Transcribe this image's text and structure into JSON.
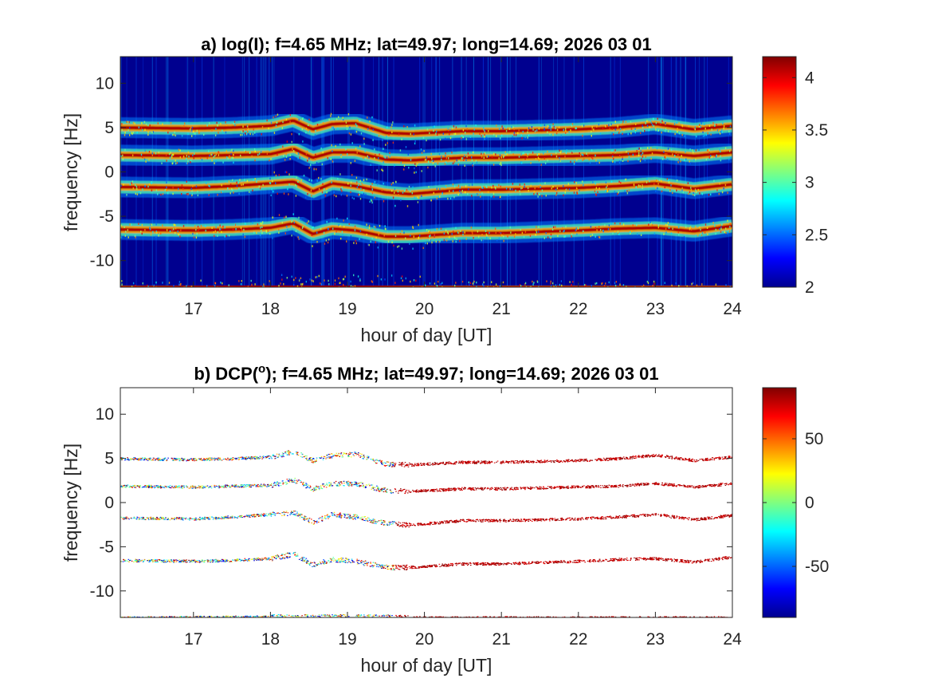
{
  "chart_data": [
    {
      "type": "heatmap",
      "title": "a) log(I); f=4.65 MHz;  lat=49.97; long=14.69; 2026 03 01",
      "xlabel": "hour of day [UT]",
      "ylabel": "frequency [Hz]",
      "xlim": [
        16.05,
        24
      ],
      "ylim": [
        -13,
        13
      ],
      "xticks": [
        17,
        18,
        19,
        20,
        21,
        22,
        23,
        24
      ],
      "yticks": [
        -10,
        -5,
        0,
        5,
        10
      ],
      "colorbar": {
        "min": 2,
        "max": 4.2,
        "ticks": [
          2,
          2.5,
          3,
          3.5,
          4
        ]
      },
      "colormap": "jet",
      "background_value": 2.0,
      "bands": [
        {
          "name": "5 Hz line",
          "points": [
            [
              16.05,
              5.0
            ],
            [
              17.0,
              4.9
            ],
            [
              17.5,
              5.0
            ],
            [
              18.0,
              5.2
            ],
            [
              18.3,
              5.8
            ],
            [
              18.55,
              4.8
            ],
            [
              18.8,
              5.4
            ],
            [
              19.1,
              5.5
            ],
            [
              19.5,
              4.4
            ],
            [
              19.8,
              4.3
            ],
            [
              20.5,
              4.6
            ],
            [
              21.0,
              4.6
            ],
            [
              22.0,
              4.8
            ],
            [
              22.5,
              5.0
            ],
            [
              23.0,
              5.4
            ],
            [
              23.5,
              4.8
            ],
            [
              24.0,
              5.2
            ]
          ]
        },
        {
          "name": "2 Hz line",
          "points": [
            [
              16.05,
              1.9
            ],
            [
              17.0,
              1.8
            ],
            [
              17.5,
              1.9
            ],
            [
              18.0,
              2.0
            ],
            [
              18.3,
              2.6
            ],
            [
              18.55,
              1.6
            ],
            [
              18.8,
              2.2
            ],
            [
              19.1,
              2.2
            ],
            [
              19.5,
              1.4
            ],
            [
              19.8,
              1.3
            ],
            [
              20.5,
              1.6
            ],
            [
              21.0,
              1.6
            ],
            [
              22.0,
              1.8
            ],
            [
              22.5,
              1.9
            ],
            [
              23.0,
              2.2
            ],
            [
              23.5,
              1.8
            ],
            [
              24.0,
              2.2
            ]
          ]
        },
        {
          "name": "-2 Hz line",
          "points": [
            [
              16.05,
              -1.7
            ],
            [
              17.0,
              -1.8
            ],
            [
              17.5,
              -1.6
            ],
            [
              18.0,
              -1.3
            ],
            [
              18.3,
              -1.1
            ],
            [
              18.55,
              -2.2
            ],
            [
              18.8,
              -1.3
            ],
            [
              19.1,
              -1.6
            ],
            [
              19.5,
              -2.3
            ],
            [
              19.8,
              -2.5
            ],
            [
              20.5,
              -2.0
            ],
            [
              21.0,
              -2.0
            ],
            [
              22.0,
              -1.8
            ],
            [
              22.5,
              -1.6
            ],
            [
              23.0,
              -1.3
            ],
            [
              23.5,
              -1.9
            ],
            [
              24.0,
              -1.4
            ]
          ]
        },
        {
          "name": "-6.5 Hz line",
          "points": [
            [
              16.05,
              -6.5
            ],
            [
              17.0,
              -6.6
            ],
            [
              17.5,
              -6.5
            ],
            [
              18.0,
              -6.3
            ],
            [
              18.3,
              -5.8
            ],
            [
              18.55,
              -7.0
            ],
            [
              18.8,
              -6.4
            ],
            [
              19.1,
              -6.6
            ],
            [
              19.5,
              -7.3
            ],
            [
              19.8,
              -7.3
            ],
            [
              20.5,
              -6.9
            ],
            [
              21.0,
              -6.9
            ],
            [
              22.0,
              -6.6
            ],
            [
              22.5,
              -6.4
            ],
            [
              23.0,
              -6.3
            ],
            [
              23.5,
              -6.7
            ],
            [
              24.0,
              -6.1
            ]
          ]
        },
        {
          "name": "-13 Hz edge line",
          "points": [
            [
              16.05,
              -13.0
            ],
            [
              18.0,
              -12.9
            ],
            [
              19.0,
              -12.9
            ],
            [
              20.0,
              -13.0
            ],
            [
              24.0,
              -13.0
            ]
          ]
        }
      ]
    },
    {
      "type": "scatter",
      "title": "b) DCP(°); f=4.65 MHz;  lat=49.97; long=14.69; 2026 03 01",
      "xlabel": "hour of day [UT]",
      "ylabel": "frequency [Hz]",
      "xlim": [
        16.05,
        24
      ],
      "ylim": [
        -13,
        13
      ],
      "xticks": [
        17,
        18,
        19,
        20,
        21,
        22,
        23,
        24
      ],
      "yticks": [
        -10,
        -5,
        0,
        5,
        10
      ],
      "colorbar": {
        "min": -90,
        "max": 90,
        "ticks": [
          -50,
          0,
          50
        ]
      },
      "colormap": "jet",
      "dcp_segments": [
        {
          "x_from": 16.05,
          "x_to": 19.6,
          "dcp": "mixed -90..90"
        },
        {
          "x_from": 19.6,
          "x_to": 24.0,
          "dcp": 85
        }
      ]
    }
  ],
  "panel_a": {
    "title": "a) log(I); f=4.65 MHz;  lat=49.97; long=14.69; 2026 03 01",
    "xlabel": "hour of day [UT]",
    "ylabel": "frequency [Hz]",
    "xticklabels": [
      "17",
      "18",
      "19",
      "20",
      "21",
      "22",
      "23",
      "24"
    ],
    "yticklabels": [
      "10",
      "5",
      "0",
      "-5",
      "-10"
    ],
    "cbticklabels": [
      "2",
      "2.5",
      "3",
      "3.5",
      "4"
    ]
  },
  "panel_b": {
    "title_prefix": "b) DCP(",
    "title_sup": "o",
    "title_suffix": "); f=4.65 MHz;  lat=49.97; long=14.69; 2026 03 01",
    "xlabel": "hour of day [UT]",
    "ylabel": "frequency [Hz]",
    "xticklabels": [
      "17",
      "18",
      "19",
      "20",
      "21",
      "22",
      "23",
      "24"
    ],
    "yticklabels": [
      "10",
      "5",
      "0",
      "-5",
      "-10"
    ],
    "cbticklabels": [
      "50",
      "0",
      "-50"
    ]
  }
}
